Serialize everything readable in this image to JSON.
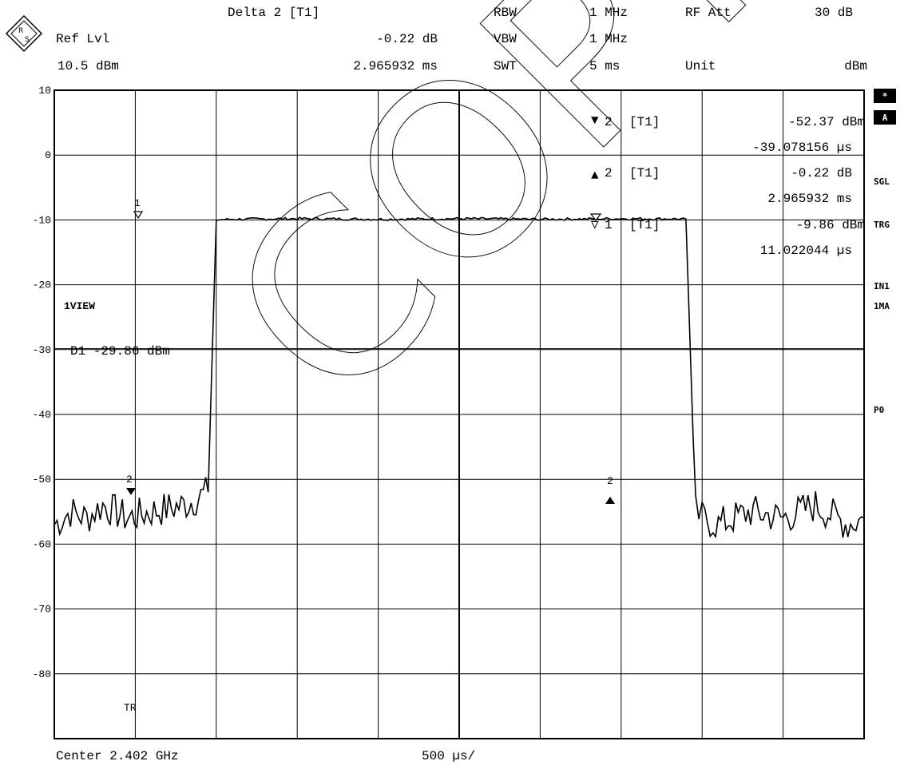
{
  "header": {
    "ref_lvl_label": "Ref Lvl",
    "ref_lvl_value": "10.5 dBm",
    "delta_label": "Delta 2 [T1]",
    "delta_value": "-0.22 dB",
    "delta_time": "2.965932 ms",
    "rbw_label": "RBW",
    "rbw_value": "1 MHz",
    "vbw_label": "VBW",
    "vbw_value": "1 MHz",
    "swt_label": "SWT",
    "swt_value": "5 ms",
    "rf_att_label": "RF Att",
    "rf_att_value": "30 dB",
    "unit_label": "Unit",
    "unit_value": "dBm"
  },
  "markers": [
    {
      "symbol": "▼",
      "number": "2",
      "trace": "[T1]",
      "value": "-52.37 dBm",
      "time": "-39.078156 µs"
    },
    {
      "symbol": "▲",
      "number": "2",
      "trace": "[T1]",
      "value": "-0.22 dB",
      "time": "2.965932 ms"
    },
    {
      "symbol": "▽",
      "number": "1",
      "trace": "[T1]",
      "value": "-9.86 dBm",
      "time": "11.022044 µs"
    }
  ],
  "side": {
    "badge_star": "*",
    "badge_a": "A",
    "sgl": "SGL",
    "trg": "TRG",
    "in1": "IN1",
    "ma1": "1MA",
    "p0": "P0"
  },
  "plot": {
    "view_label": "1VIEW",
    "display_line": "D1 -29.86 dBm",
    "tr_label": "TR",
    "marker_tag_1": "1",
    "marker_tag_2": "2",
    "watermark": "COPY"
  },
  "footer": {
    "center": "Center 2.402 GHz",
    "span_per_div": "500 µs/"
  },
  "chart_data": {
    "type": "line",
    "y_ticks": [
      "10",
      "0",
      "-10",
      "-20",
      "-30",
      "-40",
      "-50",
      "-60",
      "-70",
      "-80"
    ],
    "ylim": [
      -90,
      10
    ],
    "x_divisions": 10,
    "x_range_ms": [
      0,
      5
    ],
    "display_line_dbm": -29.86,
    "grid": true,
    "series": [
      {
        "x_ms": [
          0,
          0.1,
          0.2,
          0.3,
          0.45,
          0.6,
          0.8,
          0.95,
          1.0,
          1.1,
          1.5,
          2.0,
          2.5,
          3.0,
          3.5,
          3.9,
          3.96,
          4.0,
          4.1,
          4.3,
          4.5,
          4.7,
          4.9,
          5.0
        ],
        "y_dbm": [
          -57,
          -55,
          -56,
          -54,
          -56,
          -55,
          -54,
          -52,
          -10,
          -9.9,
          -9.8,
          -9.9,
          -9.8,
          -9.9,
          -9.8,
          -9.86,
          -55,
          -56,
          -57,
          -55,
          -56,
          -54,
          -57,
          -56
        ]
      }
    ],
    "markers": [
      {
        "label": "1",
        "x_ms": 0.51,
        "y_dbm": -9.86
      },
      {
        "label": "2",
        "x_ms": 0.47,
        "y_dbm": -52.37
      },
      {
        "label": "2",
        "x_ms": 3.44,
        "y_dbm": -52.59
      }
    ]
  }
}
